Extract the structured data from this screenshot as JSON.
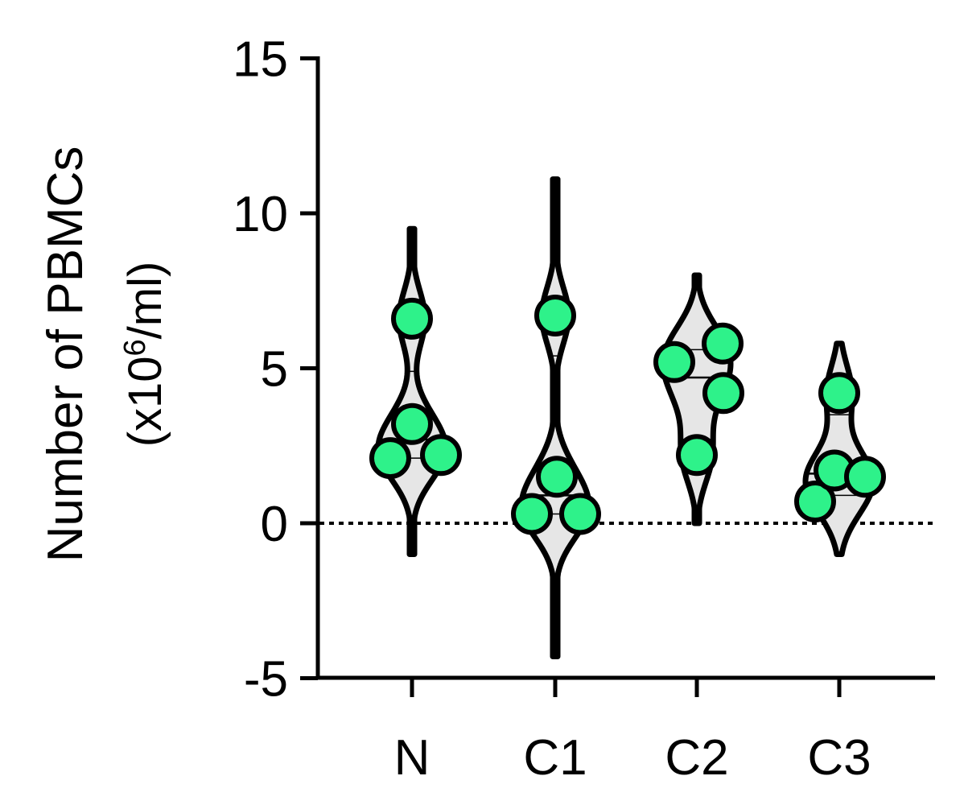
{
  "chart_data": {
    "type": "violin",
    "ylabel_line1": "Number of PBMCs",
    "ylabel_line2_prefix": "(x10",
    "ylabel_line2_sup": "6",
    "ylabel_line2_suffix": "/ml)",
    "ylim": [
      -5,
      15
    ],
    "yticks": [
      "15",
      "10",
      "5",
      "0",
      "-5"
    ],
    "ytick_values": [
      15,
      10,
      5,
      0,
      -5
    ],
    "reference_line": 0,
    "categories": [
      "N",
      "C1",
      "C2",
      "C3"
    ],
    "groups": [
      {
        "category": "N",
        "points": [
          2.1,
          3.2,
          2.2,
          6.6
        ],
        "violin_extent": [
          -1.0,
          9.5
        ],
        "median": 2.7,
        "quartiles": [
          2.1,
          4.9
        ]
      },
      {
        "category": "C1",
        "points": [
          0.3,
          1.5,
          0.3,
          6.7
        ],
        "violin_extent": [
          -4.3,
          11.1
        ],
        "median": 0.9,
        "quartiles": [
          0.3,
          5.4
        ]
      },
      {
        "category": "C2",
        "points": [
          5.2,
          5.8,
          4.2,
          2.2
        ],
        "violin_extent": [
          0.0,
          8.0
        ],
        "median": 4.7,
        "quartiles": [
          2.7,
          5.6
        ]
      },
      {
        "category": "C3",
        "points": [
          0.7,
          1.7,
          1.5,
          4.2
        ],
        "violin_extent": [
          -1.0,
          5.8
        ],
        "median": 1.6,
        "quartiles": [
          0.9,
          3.5
        ]
      }
    ],
    "colors": {
      "point_fill": "#2ef28a",
      "violin_fill": "#e6e6e6",
      "stroke": "#000000"
    }
  }
}
